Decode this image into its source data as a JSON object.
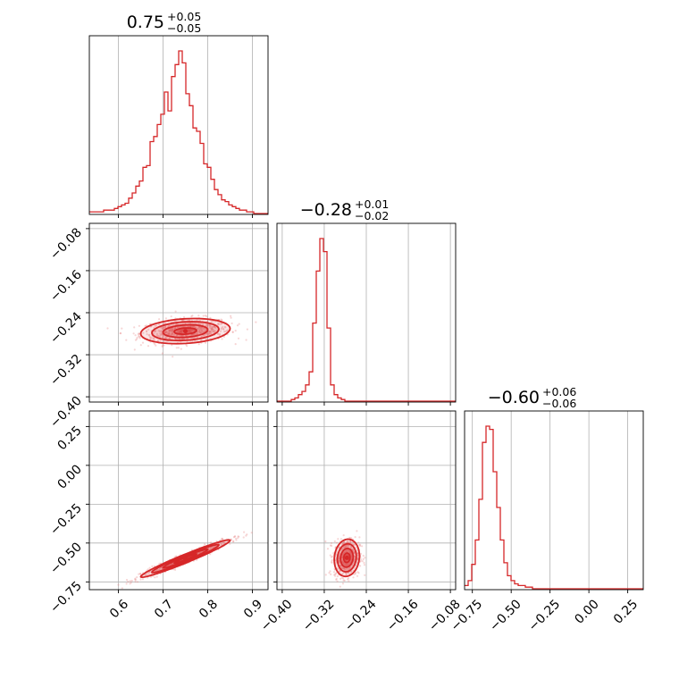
{
  "chart_data": {
    "type": "corner",
    "color": "#d62728",
    "params": [
      {
        "name": "p0",
        "median": 0.75,
        "plus": 0.05,
        "minus": 0.05,
        "title_main": "0.75",
        "title_sup": "+0.05",
        "title_sub": "−0.05",
        "range": [
          0.535,
          0.935
        ],
        "sigma": 0.05,
        "ticks": [
          0.6,
          0.7,
          0.8,
          0.9
        ],
        "ticklabels": [
          "0.6",
          "0.7",
          "0.8",
          "0.9"
        ]
      },
      {
        "name": "p1",
        "median": -0.28,
        "plus": 0.01,
        "minus": 0.02,
        "title_main": "−0.28",
        "title_sup": "+0.01",
        "title_sub": "−0.02",
        "range": [
          -0.41,
          -0.07
        ],
        "sigma": 0.012,
        "ticks": [
          -0.4,
          -0.32,
          -0.24,
          -0.16,
          -0.08
        ],
        "ticklabels": [
          "−0.40",
          "−0.32",
          "−0.24",
          "−0.16",
          "−0.08"
        ]
      },
      {
        "name": "p2",
        "median": -0.6,
        "plus": 0.06,
        "minus": 0.06,
        "title_main": "−0.60",
        "title_sup": "+0.06",
        "title_sub": "−0.06",
        "range": [
          -0.8,
          0.35
        ],
        "sigma": 0.06,
        "ticks": [
          -0.75,
          -0.5,
          -0.25,
          0.0,
          0.25
        ],
        "ticklabels": [
          "−0.75",
          "−0.50",
          "−0.25",
          "0.00",
          "0.25"
        ]
      }
    ],
    "histograms": [
      {
        "param": 0,
        "bin_start": 0.535,
        "bin_width": 0.008,
        "counts": [
          1,
          1,
          1,
          1,
          2,
          2,
          2,
          3,
          4,
          5,
          6,
          9,
          12,
          16,
          19,
          27,
          28,
          42,
          45,
          52,
          58,
          71,
          60,
          80,
          87,
          95,
          88,
          70,
          63,
          50,
          48,
          41,
          29,
          27,
          20,
          14,
          11,
          8,
          7,
          5,
          4,
          3,
          2,
          2,
          1,
          1,
          0,
          0,
          0,
          0
        ]
      },
      {
        "param": 1,
        "bin_start": -0.41,
        "bin_width": 0.0068,
        "counts": [
          0,
          0,
          0,
          0,
          1,
          2,
          4,
          6,
          10,
          18,
          48,
          80,
          100,
          92,
          45,
          10,
          4,
          2,
          1,
          0,
          0,
          0,
          0,
          0,
          0,
          0,
          0,
          0,
          0,
          0,
          0,
          0,
          0,
          0,
          0,
          0,
          0,
          0,
          0,
          0,
          0,
          0,
          0,
          0,
          0,
          0,
          0,
          0,
          0,
          0
        ]
      },
      {
        "param": 2,
        "bin_start": -0.8,
        "bin_width": 0.023,
        "counts": [
          2,
          5,
          15,
          30,
          55,
          90,
          100,
          98,
          72,
          50,
          30,
          16,
          8,
          5,
          3,
          2,
          2,
          1,
          1,
          0,
          0,
          0,
          0,
          0,
          0,
          0,
          0,
          0,
          0,
          0,
          0,
          0,
          0,
          0,
          0,
          0,
          0,
          0,
          0,
          0,
          0,
          0,
          0,
          0,
          0,
          0,
          0,
          0,
          0,
          0
        ]
      }
    ],
    "pairs": [
      {
        "x": 0,
        "y": 1,
        "center": [
          0.75,
          -0.275
        ],
        "rho": 0.2
      },
      {
        "x": 0,
        "y": 2,
        "center": [
          0.75,
          -0.6
        ],
        "rho": 0.97
      },
      {
        "x": 1,
        "y": 2,
        "center": [
          -0.277,
          -0.595
        ],
        "rho": 0.1
      }
    ]
  }
}
